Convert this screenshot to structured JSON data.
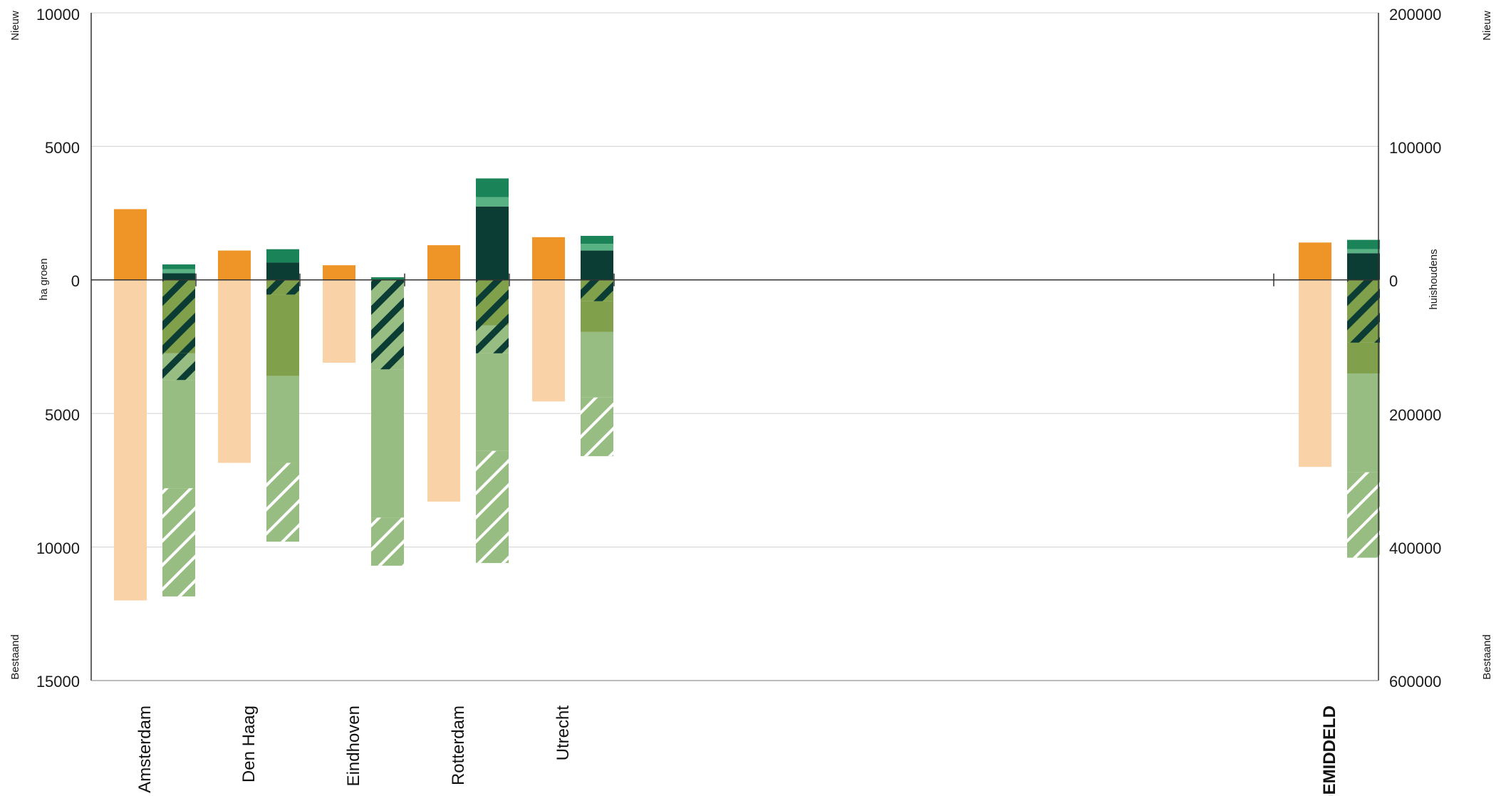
{
  "chart_data": {
    "type": "bar",
    "left_axis": {
      "label": "ha groen",
      "top_label": "Nieuw",
      "bottom_label": "Bestaand",
      "ticks": [
        "10000",
        "5000",
        "0",
        "5000",
        "10000",
        "15000"
      ],
      "tick_values": [
        10000,
        5000,
        0,
        -5000,
        -10000,
        -15000
      ],
      "range": [
        -15000,
        10000
      ]
    },
    "right_axis": {
      "label": "huishoudens",
      "top_label": "Nieuw",
      "bottom_label": "Bestaand",
      "ticks": [
        "200000",
        "100000",
        "0",
        "200000",
        "400000",
        "600000"
      ],
      "tick_values": [
        200000,
        100000,
        0,
        -200000,
        -400000,
        -600000
      ],
      "range": [
        -600000,
        200000
      ]
    },
    "grid": true,
    "categories": [
      "Amsterdam",
      "Den Haag",
      "Eindhoven",
      "Rotterdam",
      "Utrecht",
      "GEMIDDELD"
    ],
    "colors": {
      "orange": "#ef9527",
      "peach": "#f9d3a7",
      "dark_green": "#0c3d34",
      "mid_green": "#1b8358",
      "light_teal": "#58b283",
      "olive": "#81a04c",
      "light_green": "#98bd82",
      "stripe_white": "#ffffff"
    },
    "bars": [
      {
        "category": "Amsterdam",
        "households_new": 2650,
        "households_existing": -12000,
        "green_new": [
          [
            0,
            250,
            "dark_green"
          ],
          [
            250,
            400,
            "light_teal"
          ],
          [
            400,
            580,
            "mid_green"
          ]
        ],
        "green_existing": [
          [
            0,
            -2750,
            "olive",
            "dark_green"
          ],
          [
            -2750,
            -3750,
            "light_green",
            "dark_green"
          ],
          [
            -3750,
            -7800,
            "light_green",
            null
          ],
          [
            -7800,
            -11850,
            "light_green",
            "stripe_white"
          ]
        ]
      },
      {
        "category": "Den Haag",
        "households_new": 1100,
        "households_existing": -6850,
        "green_new": [
          [
            0,
            650,
            "dark_green"
          ],
          [
            650,
            1150,
            "mid_green"
          ]
        ],
        "green_existing": [
          [
            0,
            -550,
            "olive",
            "dark_green"
          ],
          [
            -550,
            -3600,
            "olive",
            null
          ],
          [
            -3600,
            -6850,
            "light_green",
            null
          ],
          [
            -6850,
            -9800,
            "light_green",
            "stripe_white"
          ]
        ]
      },
      {
        "category": "Eindhoven",
        "households_new": 550,
        "households_existing": -3100,
        "green_new": [
          [
            0,
            100,
            "mid_green"
          ]
        ],
        "green_existing": [
          [
            0,
            -3350,
            "light_green",
            "dark_green"
          ],
          [
            -3350,
            -8900,
            "light_green",
            null
          ],
          [
            -8900,
            -10700,
            "light_green",
            "stripe_white"
          ]
        ]
      },
      {
        "category": "Rotterdam",
        "households_new": 1300,
        "households_existing": -8300,
        "green_new": [
          [
            0,
            2750,
            "dark_green"
          ],
          [
            2750,
            3100,
            "light_teal"
          ],
          [
            3100,
            3800,
            "mid_green"
          ]
        ],
        "green_existing": [
          [
            0,
            -1700,
            "olive",
            "dark_green"
          ],
          [
            -1700,
            -2750,
            "light_green",
            "dark_green"
          ],
          [
            -2750,
            -6400,
            "light_green",
            null
          ],
          [
            -6400,
            -10600,
            "light_green",
            "stripe_white"
          ]
        ]
      },
      {
        "category": "Utrecht",
        "households_new": 1600,
        "households_existing": -4550,
        "green_new": [
          [
            0,
            1100,
            "dark_green"
          ],
          [
            1100,
            1350,
            "light_teal"
          ],
          [
            1350,
            1650,
            "mid_green"
          ]
        ],
        "green_existing": [
          [
            0,
            -800,
            "olive",
            "dark_green"
          ],
          [
            -800,
            -1950,
            "olive",
            null
          ],
          [
            -1950,
            -4400,
            "light_green",
            null
          ],
          [
            -4400,
            -6600,
            "light_green",
            "stripe_white"
          ]
        ]
      },
      {
        "category": "GEMIDDELD",
        "households_new": 1400,
        "households_existing": -7000,
        "green_new": [
          [
            0,
            1000,
            "dark_green"
          ],
          [
            1000,
            1150,
            "light_teal"
          ],
          [
            1150,
            1500,
            "mid_green"
          ]
        ],
        "green_existing": [
          [
            0,
            -2350,
            "olive",
            "dark_green"
          ],
          [
            -2350,
            -3500,
            "olive",
            null
          ],
          [
            -3500,
            -7200,
            "light_green",
            null
          ],
          [
            -7200,
            -10400,
            "light_green",
            "stripe_white"
          ]
        ]
      }
    ]
  }
}
